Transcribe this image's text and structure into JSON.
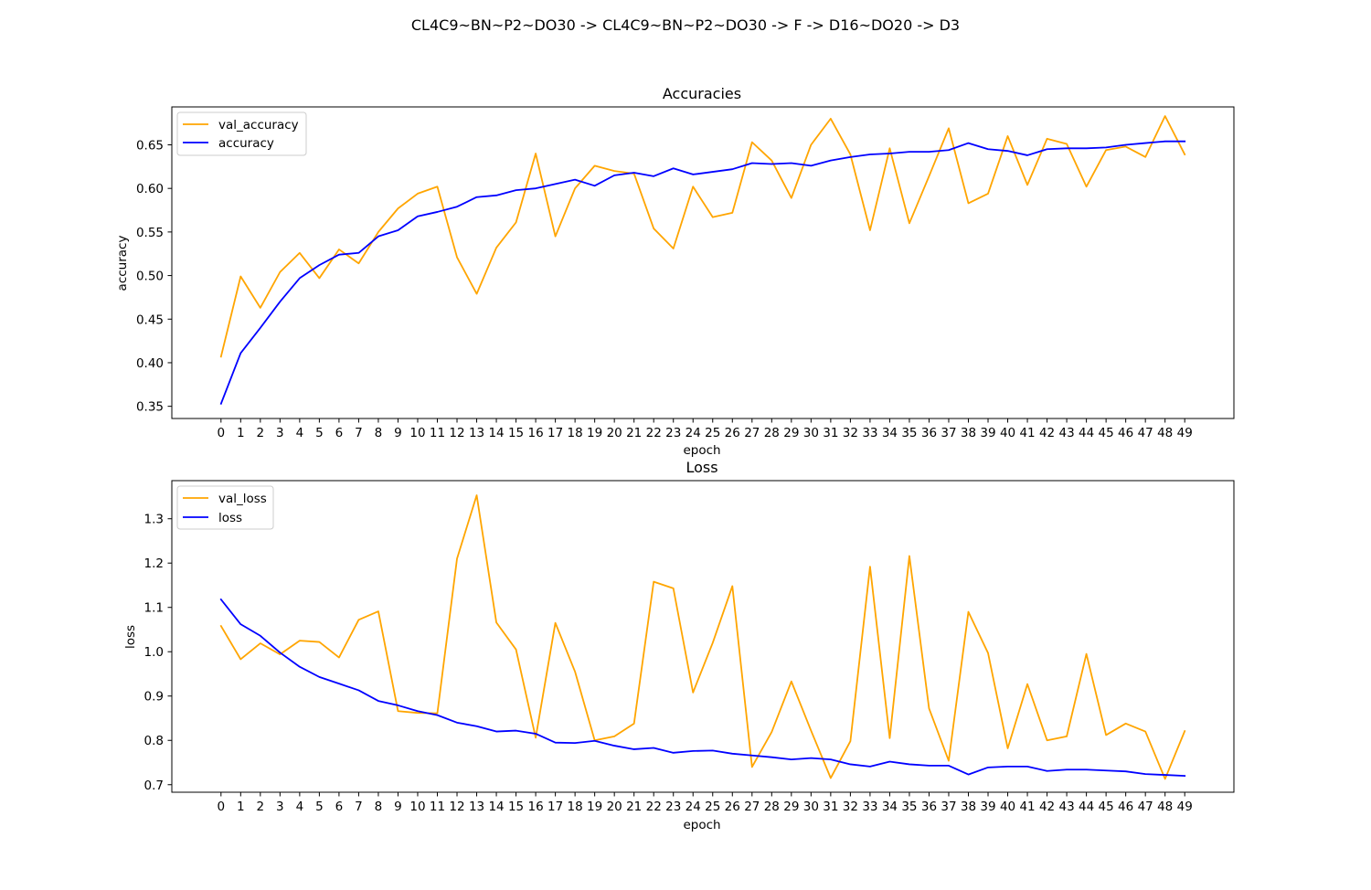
{
  "figure": {
    "suptitle": "CL4C9~BN~P2~DO30 -> CL4C9~BN~P2~DO30 -> F -> D16~DO20 -> D3"
  },
  "chart_data": [
    {
      "type": "line",
      "title": "Accuracies",
      "xlabel": "epoch",
      "ylabel": "accuracy",
      "x": [
        0,
        1,
        2,
        3,
        4,
        5,
        6,
        7,
        8,
        9,
        10,
        11,
        12,
        13,
        14,
        15,
        16,
        17,
        18,
        19,
        20,
        21,
        22,
        23,
        24,
        25,
        26,
        27,
        28,
        29,
        30,
        31,
        32,
        33,
        34,
        35,
        36,
        37,
        38,
        39,
        40,
        41,
        42,
        43,
        44,
        45,
        46,
        47,
        48,
        49
      ],
      "xlim": [
        -2.5,
        51.5
      ],
      "ylim": [
        0.336,
        0.6935
      ],
      "yticks": [
        0.35,
        0.4,
        0.45,
        0.5,
        0.55,
        0.6,
        0.65
      ],
      "ytick_labels": [
        "0.35",
        "0.40",
        "0.45",
        "0.50",
        "0.55",
        "0.60",
        "0.65"
      ],
      "legend_loc": "upper-left",
      "series": [
        {
          "name": "val_accuracy",
          "color": "#ffa500",
          "values": [
            0.407,
            0.499,
            0.463,
            0.504,
            0.526,
            0.497,
            0.53,
            0.514,
            0.55,
            0.577,
            0.594,
            0.602,
            0.521,
            0.479,
            0.532,
            0.561,
            0.64,
            0.545,
            0.6,
            0.626,
            0.62,
            0.617,
            0.554,
            0.531,
            0.602,
            0.567,
            0.572,
            0.653,
            0.632,
            0.589,
            0.65,
            0.68,
            0.639,
            0.552,
            0.646,
            0.56,
            0.614,
            0.669,
            0.583,
            0.594,
            0.66,
            0.604,
            0.657,
            0.651,
            0.602,
            0.644,
            0.648,
            0.636,
            0.683,
            0.639
          ]
        },
        {
          "name": "accuracy",
          "color": "#0000ff",
          "values": [
            0.353,
            0.411,
            0.44,
            0.47,
            0.497,
            0.512,
            0.524,
            0.526,
            0.545,
            0.552,
            0.568,
            0.573,
            0.579,
            0.59,
            0.592,
            0.598,
            0.6,
            0.605,
            0.61,
            0.603,
            0.615,
            0.618,
            0.614,
            0.623,
            0.616,
            0.619,
            0.622,
            0.629,
            0.628,
            0.629,
            0.626,
            0.632,
            0.636,
            0.639,
            0.64,
            0.642,
            0.642,
            0.644,
            0.652,
            0.645,
            0.643,
            0.638,
            0.645,
            0.646,
            0.646,
            0.647,
            0.65,
            0.652,
            0.654,
            0.654
          ]
        }
      ]
    },
    {
      "type": "line",
      "title": "Loss",
      "xlabel": "epoch",
      "ylabel": "loss",
      "x": [
        0,
        1,
        2,
        3,
        4,
        5,
        6,
        7,
        8,
        9,
        10,
        11,
        12,
        13,
        14,
        15,
        16,
        17,
        18,
        19,
        20,
        21,
        22,
        23,
        24,
        25,
        26,
        27,
        28,
        29,
        30,
        31,
        32,
        33,
        34,
        35,
        36,
        37,
        38,
        39,
        40,
        41,
        42,
        43,
        44,
        45,
        46,
        47,
        48,
        49
      ],
      "xlim": [
        -2.5,
        51.5
      ],
      "ylim": [
        0.683,
        1.386
      ],
      "yticks": [
        0.7,
        0.8,
        0.9,
        1.0,
        1.1,
        1.2,
        1.3
      ],
      "ytick_labels": [
        "0.7",
        "0.8",
        "0.9",
        "1.0",
        "1.1",
        "1.2",
        "1.3"
      ],
      "legend_loc": "upper-left",
      "series": [
        {
          "name": "val_loss",
          "color": "#ffa500",
          "values": [
            1.058,
            0.983,
            1.019,
            0.994,
            1.025,
            1.022,
            0.987,
            1.072,
            1.091,
            0.866,
            0.862,
            0.861,
            1.21,
            1.353,
            1.066,
            1.005,
            0.806,
            1.065,
            0.955,
            0.8,
            0.809,
            0.838,
            1.158,
            1.143,
            0.908,
            1.02,
            1.148,
            0.74,
            0.819,
            0.933,
            0.822,
            0.715,
            0.798,
            1.192,
            0.805,
            1.216,
            0.872,
            0.754,
            1.09,
            0.997,
            0.782,
            0.927,
            0.8,
            0.809,
            0.995,
            0.812,
            0.838,
            0.82,
            0.713,
            0.821
          ]
        },
        {
          "name": "loss",
          "color": "#0000ff",
          "values": [
            1.118,
            1.062,
            1.036,
            0.998,
            0.966,
            0.943,
            0.928,
            0.913,
            0.889,
            0.879,
            0.866,
            0.857,
            0.84,
            0.832,
            0.82,
            0.822,
            0.815,
            0.795,
            0.794,
            0.799,
            0.788,
            0.78,
            0.783,
            0.772,
            0.776,
            0.777,
            0.77,
            0.766,
            0.762,
            0.757,
            0.76,
            0.757,
            0.746,
            0.741,
            0.752,
            0.746,
            0.743,
            0.743,
            0.723,
            0.739,
            0.741,
            0.741,
            0.731,
            0.734,
            0.734,
            0.732,
            0.73,
            0.724,
            0.722,
            0.72
          ]
        }
      ]
    }
  ]
}
